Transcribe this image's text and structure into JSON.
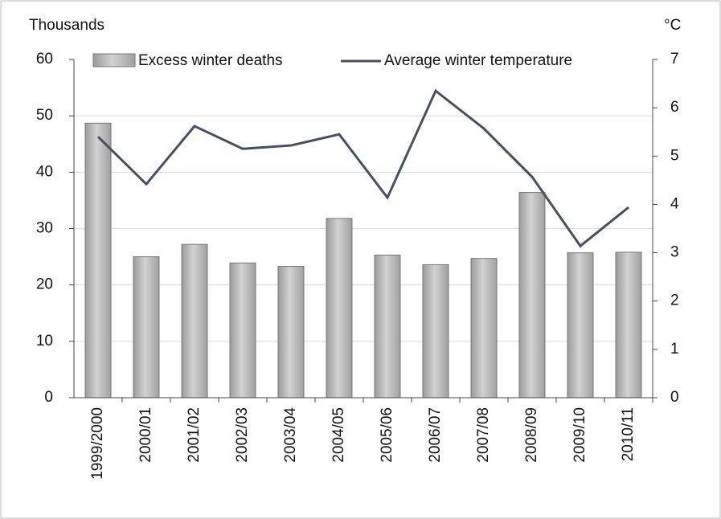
{
  "chart_data": {
    "type": "bar-line",
    "y_label": "Thousands",
    "y2_label": "°C",
    "categories": [
      "1999/2000",
      "2000/01",
      "2001/02",
      "2002/03",
      "2003/04",
      "2004/05",
      "2005/06",
      "2006/07",
      "2007/08",
      "2008/09",
      "2009/10",
      "2010/11"
    ],
    "series": [
      {
        "name": "Excess winter deaths",
        "color": "#b4b4b4",
        "values": [
          48.7,
          25,
          27.2,
          23.9,
          23.3,
          31.8,
          25.3,
          23.6,
          24.7,
          36.4,
          25.7,
          25.8
        ]
      },
      {
        "name": "Average winter temperature",
        "color": "#4a4f5e",
        "axis": "y2",
        "values": [
          5.4,
          4.42,
          5.62,
          5.15,
          5.22,
          5.45,
          4.14,
          6.35,
          5.57,
          4.57,
          3.14,
          3.94
        ]
      }
    ],
    "ylim": [
      0,
      60
    ],
    "yticks": [
      0,
      10,
      20,
      30,
      40,
      50,
      60
    ],
    "y2lim": [
      0,
      7
    ],
    "y2ticks": [
      0,
      1,
      2,
      3,
      4,
      5,
      6,
      7
    ],
    "grid": true,
    "legend": "top"
  }
}
